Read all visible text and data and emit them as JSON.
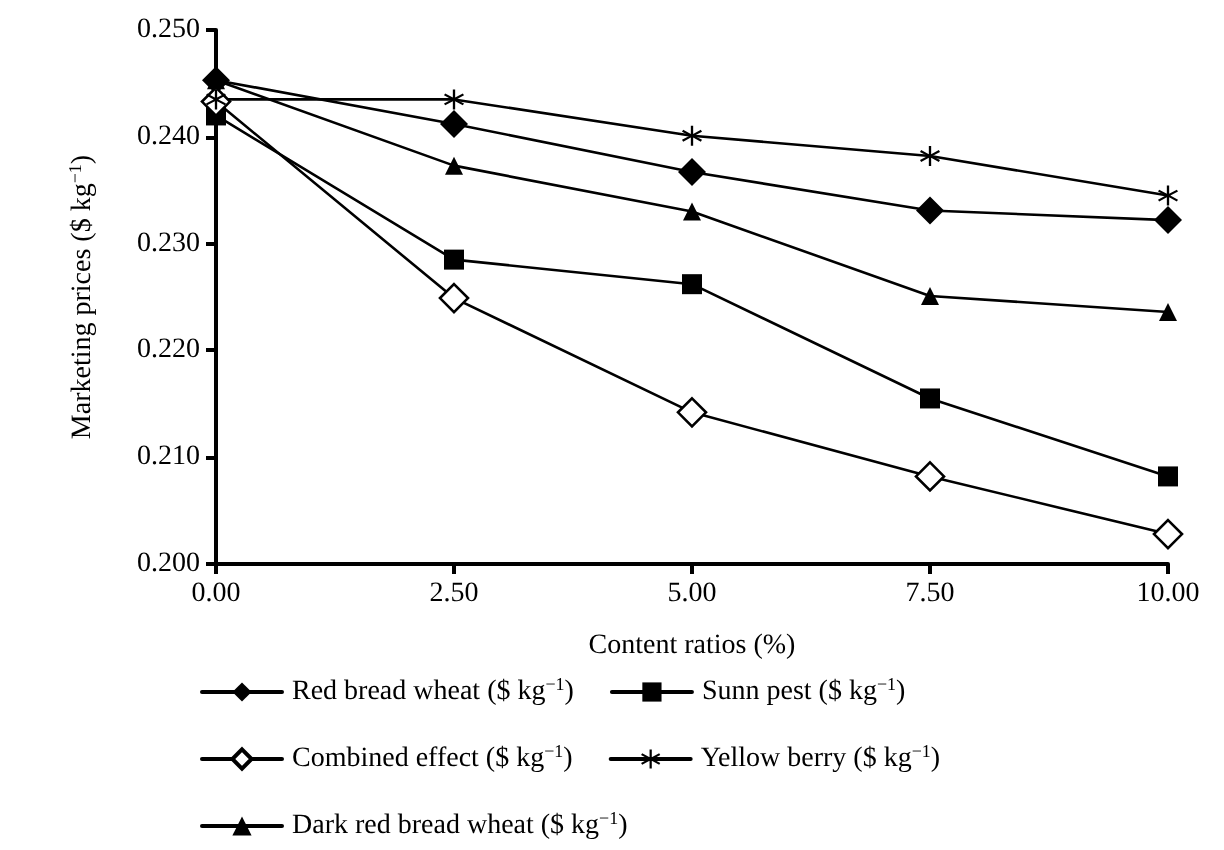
{
  "chart_data": {
    "type": "line",
    "xlabel": "Content ratios (%)",
    "ylabel": "Marketing prices ($ kg$^{−1}$)",
    "x": [
      0,
      2.5,
      5,
      7.5,
      10
    ],
    "xlim": [
      0,
      10
    ],
    "xticks": [
      {
        "value": 0,
        "label": "0.00"
      },
      {
        "value": 2.5,
        "label": "2.50"
      },
      {
        "value": 5,
        "label": "5.00"
      },
      {
        "value": 7.5,
        "label": "7.50"
      },
      {
        "value": 10,
        "label": "10.00"
      }
    ],
    "ylim": [
      0.2,
      0.25
    ],
    "yticks": [
      {
        "value": 0.2,
        "label": "0.200"
      },
      {
        "value": 0.21,
        "label": "0.210"
      },
      {
        "value": 0.22,
        "label": "0.220"
      },
      {
        "value": 0.23,
        "label": "0.230"
      },
      {
        "value": 0.24,
        "label": "0.240"
      },
      {
        "value": 0.25,
        "label": "0.250"
      }
    ],
    "grid": false,
    "legend": "bottom",
    "line_style": "solid",
    "series": [
      {
        "name": "Red bread wheat ($ kg$^{−1}$)",
        "color": "#000000",
        "marker": "diamond",
        "values": [
          0.2453,
          0.2412,
          0.2367,
          0.2331,
          0.2322
        ]
      },
      {
        "name": "Sunn pest ($ kg$^{−1}$)",
        "color": "#000000",
        "marker": "square",
        "values": [
          0.242,
          0.2285,
          0.2262,
          0.2155,
          0.2082
        ]
      },
      {
        "name": "Combined effect ($ kg$^{−1}$)",
        "color": "#000000",
        "marker": "diamond",
        "values": [
          0.2433,
          0.2249,
          0.2142,
          0.2082,
          0.2028
        ]
      },
      {
        "name": "Yellow berry ($ kg$^{−1}$)",
        "color": "#000000",
        "marker": "star",
        "values": [
          0.2435,
          0.2435,
          0.2401,
          0.2382,
          0.2345
        ]
      },
      {
        "name": "Dark red bread wheat ($ kg$^{−1}$)",
        "color": "#000000",
        "marker": "triangle",
        "values": [
          0.2453,
          0.2373,
          0.233,
          0.2251,
          0.2236
        ]
      }
    ]
  }
}
